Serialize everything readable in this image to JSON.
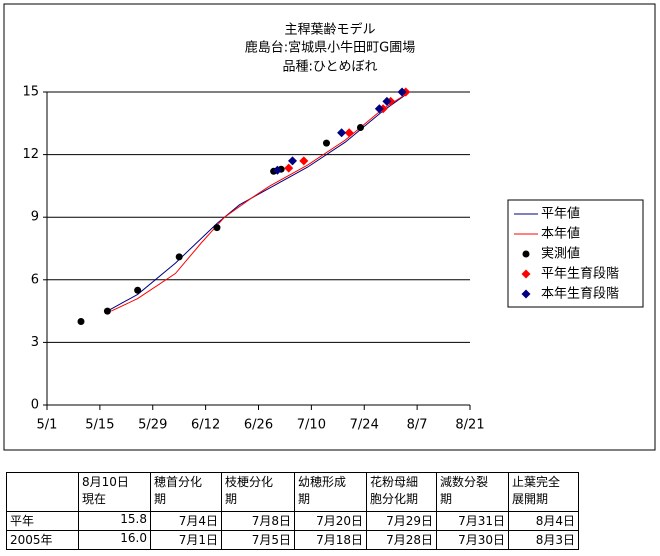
{
  "chart_data": {
    "type": "line",
    "title": [
      "主稈葉齢モデル",
      "鹿島台:宮城県小牛田町G圃場",
      "品種:ひとめぼれ"
    ],
    "xlim": [
      121,
      233
    ],
    "xticks": [
      {
        "value": 121,
        "label": "5/1"
      },
      {
        "value": 135,
        "label": "5/15"
      },
      {
        "value": 149,
        "label": "5/29"
      },
      {
        "value": 163,
        "label": "6/12"
      },
      {
        "value": 177,
        "label": "6/26"
      },
      {
        "value": 191,
        "label": "7/10"
      },
      {
        "value": 205,
        "label": "7/24"
      },
      {
        "value": 219,
        "label": "8/7"
      },
      {
        "value": 233,
        "label": "8/21"
      }
    ],
    "ylim": [
      0,
      15
    ],
    "yticks": [
      0,
      3,
      6,
      9,
      12,
      15
    ],
    "grid": true,
    "series": [
      {
        "name": "平年値",
        "color": "#000080",
        "style": "line",
        "x": [
          137,
          145,
          155,
          166,
          172,
          180,
          190,
          200,
          210,
          217
        ],
        "values": [
          4.5,
          5.3,
          6.8,
          8.7,
          9.6,
          10.4,
          11.4,
          12.6,
          14.1,
          15.0
        ]
      },
      {
        "name": "本年値",
        "color": "#ff0000",
        "style": "line",
        "x": [
          138,
          145,
          155,
          162,
          168,
          175,
          180,
          190,
          200,
          210,
          217
        ],
        "values": [
          4.5,
          5.1,
          6.3,
          7.8,
          9.0,
          9.9,
          10.5,
          11.5,
          12.7,
          14.2,
          15.0
        ]
      },
      {
        "name": "実測値",
        "color": "#000000",
        "style": "circle",
        "x": [
          130,
          137,
          145,
          156,
          166,
          181,
          183,
          195,
          204
        ],
        "values": [
          4.0,
          4.5,
          5.5,
          7.1,
          8.5,
          11.2,
          11.3,
          12.55,
          13.3
        ]
      },
      {
        "name": "平年生育段階",
        "color": "#ff0000",
        "style": "diamond",
        "x": [
          185,
          189,
          201,
          210,
          212,
          216
        ],
        "values": [
          11.35,
          11.7,
          13.05,
          14.2,
          14.55,
          15.0
        ]
      },
      {
        "name": "本年生育段階",
        "color": "#000080",
        "style": "diamond",
        "x": [
          182,
          186,
          199,
          209,
          211,
          215
        ],
        "values": [
          11.25,
          11.7,
          13.05,
          14.2,
          14.55,
          15.0
        ]
      }
    ]
  },
  "table": {
    "header": [
      [],
      [
        "8月10日",
        "現在"
      ],
      [
        "穂首分化",
        "期"
      ],
      [
        "枝梗分化",
        "期"
      ],
      [
        "幼穂形成",
        "期"
      ],
      [
        "花粉母細",
        "胞分化期"
      ],
      [
        "減数分裂",
        "期"
      ],
      [
        "止葉完全",
        "展開期"
      ]
    ],
    "rows": [
      [
        "平年",
        "15.8",
        "7月4日",
        "7月8日",
        "7月20日",
        "7月29日",
        "7月31日",
        "8月4日"
      ],
      [
        "2005年",
        "16.0",
        "7月1日",
        "7月5日",
        "7月18日",
        "7月28日",
        "7月30日",
        "8月3日"
      ]
    ]
  }
}
